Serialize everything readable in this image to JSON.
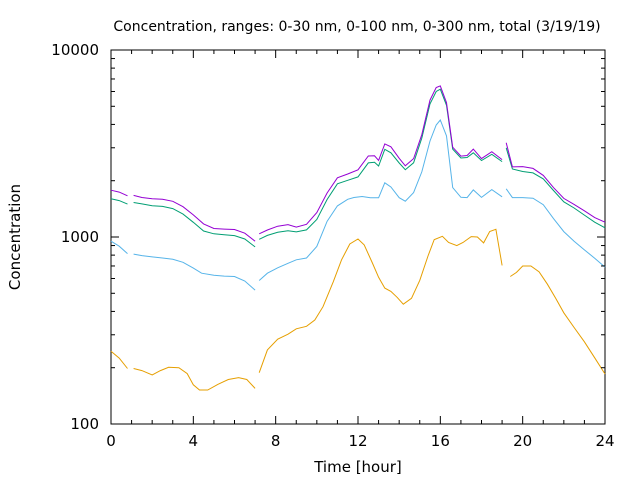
{
  "chart_data": {
    "type": "line",
    "title": "Concentration, ranges: 0-30 nm, 0-100 nm, 0-300 nm, total (3/19/19)",
    "xlabel": "Time [hour]",
    "ylabel": "Concentration",
    "xlim": [
      0,
      24
    ],
    "ylim": [
      100,
      10000
    ],
    "yscale": "log",
    "grid": false,
    "x_ticks": [
      "0",
      "4",
      "8",
      "12",
      "16",
      "20",
      "24"
    ],
    "y_ticks": [
      "100",
      "1000",
      "10000"
    ],
    "series": [
      {
        "color": "#e69f00",
        "segments": [
          [
            [
              0,
              245
            ],
            [
              0.4,
              225
            ],
            [
              0.8,
              198
            ]
          ],
          [
            [
              1.1,
              198
            ],
            [
              1.5,
              193
            ],
            [
              2.0,
              183
            ],
            [
              2.4,
              193
            ],
            [
              2.8,
              201
            ],
            [
              3.3,
              200
            ],
            [
              3.7,
              186
            ],
            [
              4.0,
              162
            ],
            [
              4.3,
              152
            ],
            [
              4.7,
              152
            ],
            [
              5.2,
              163
            ],
            [
              5.7,
              173
            ],
            [
              6.2,
              177
            ],
            [
              6.6,
              173
            ],
            [
              7.0,
              155
            ]
          ],
          [
            [
              7.2,
              188
            ],
            [
              7.6,
              249
            ],
            [
              8.1,
              284
            ],
            [
              8.6,
              302
            ],
            [
              9.0,
              323
            ],
            [
              9.5,
              333
            ],
            [
              9.9,
              360
            ],
            [
              10.3,
              424
            ],
            [
              10.8,
              577
            ],
            [
              11.2,
              754
            ],
            [
              11.6,
              917
            ],
            [
              12.0,
              976
            ],
            [
              12.3,
              907
            ],
            [
              12.7,
              726
            ],
            [
              13.0,
              609
            ],
            [
              13.3,
              533
            ],
            [
              13.6,
              512
            ],
            [
              13.9,
              476
            ],
            [
              14.2,
              437
            ],
            [
              14.6,
              470
            ],
            [
              15.0,
              587
            ],
            [
              15.4,
              791
            ],
            [
              15.7,
              968
            ],
            [
              16.1,
              1009
            ],
            [
              16.4,
              935
            ],
            [
              16.8,
              900
            ],
            [
              17.1,
              935
            ],
            [
              17.5,
              1005
            ],
            [
              17.8,
              1000
            ],
            [
              18.1,
              930
            ],
            [
              18.4,
              1070
            ],
            [
              18.7,
              1100
            ],
            [
              19.0,
              705
            ]
          ],
          [
            [
              19.4,
              615
            ],
            [
              19.7,
              647
            ],
            [
              20.0,
              700
            ],
            [
              20.4,
              700
            ],
            [
              20.8,
              651
            ],
            [
              21.2,
              559
            ],
            [
              21.6,
              471
            ],
            [
              22.0,
              393
            ],
            [
              22.5,
              328
            ],
            [
              23.0,
              275
            ],
            [
              23.5,
              226
            ],
            [
              24.0,
              185
            ]
          ]
        ]
      },
      {
        "color": "#56b4e9",
        "segments": [
          [
            [
              0,
              950
            ],
            [
              0.4,
              893
            ],
            [
              0.8,
              815
            ]
          ],
          [
            [
              1.1,
              810
            ],
            [
              1.5,
              795
            ],
            [
              2.0,
              783
            ],
            [
              2.5,
              772
            ],
            [
              3.0,
              760
            ],
            [
              3.5,
              732
            ],
            [
              4.0,
              682
            ],
            [
              4.4,
              640
            ],
            [
              5.0,
              625
            ],
            [
              5.5,
              618
            ],
            [
              6.0,
              615
            ],
            [
              6.5,
              582
            ],
            [
              7.0,
              520
            ]
          ],
          [
            [
              7.2,
              585
            ],
            [
              7.6,
              640
            ],
            [
              8.1,
              684
            ],
            [
              8.6,
              723
            ],
            [
              9.0,
              755
            ],
            [
              9.5,
              772
            ],
            [
              10.0,
              890
            ],
            [
              10.5,
              1214
            ],
            [
              11.0,
              1466
            ],
            [
              11.5,
              1591
            ],
            [
              11.8,
              1626
            ],
            [
              12.2,
              1646
            ],
            [
              12.6,
              1622
            ],
            [
              13.0,
              1621
            ],
            [
              13.3,
              1950
            ],
            [
              13.6,
              1850
            ],
            [
              14.0,
              1622
            ],
            [
              14.3,
              1554
            ],
            [
              14.7,
              1727
            ],
            [
              15.1,
              2230
            ],
            [
              15.5,
              3263
            ],
            [
              15.8,
              3971
            ],
            [
              16.0,
              4223
            ],
            [
              16.3,
              3472
            ],
            [
              16.6,
              1837
            ],
            [
              17.0,
              1630
            ],
            [
              17.3,
              1624
            ],
            [
              17.6,
              1786
            ],
            [
              18.0,
              1628
            ],
            [
              18.5,
              1792
            ],
            [
              19.0,
              1640
            ]
          ],
          [
            [
              19.2,
              1810
            ],
            [
              19.5,
              1624
            ],
            [
              20.0,
              1625
            ],
            [
              20.5,
              1612
            ],
            [
              21.0,
              1489
            ],
            [
              21.5,
              1255
            ],
            [
              22.0,
              1069
            ],
            [
              22.5,
              949
            ],
            [
              23.0,
              853
            ],
            [
              23.5,
              770
            ],
            [
              24.0,
              690
            ]
          ]
        ]
      },
      {
        "color": "#009e73",
        "segments": [
          [
            [
              0,
              1600
            ],
            [
              0.4,
              1565
            ],
            [
              0.8,
              1500
            ]
          ],
          [
            [
              1.1,
              1530
            ],
            [
              1.5,
              1504
            ],
            [
              2.0,
              1470
            ],
            [
              2.5,
              1457
            ],
            [
              3.0,
              1419
            ],
            [
              3.5,
              1326
            ],
            [
              4.0,
              1199
            ],
            [
              4.5,
              1077
            ],
            [
              5.0,
              1040
            ],
            [
              5.5,
              1028
            ],
            [
              6.0,
              1018
            ],
            [
              6.5,
              976
            ],
            [
              7.0,
              885
            ]
          ],
          [
            [
              7.2,
              972
            ],
            [
              7.6,
              1020
            ],
            [
              8.1,
              1059
            ],
            [
              8.6,
              1081
            ],
            [
              9.0,
              1065
            ],
            [
              9.5,
              1091
            ],
            [
              10.0,
              1240
            ],
            [
              10.5,
              1586
            ],
            [
              11.0,
              1925
            ],
            [
              11.5,
              2010
            ],
            [
              12.0,
              2096
            ],
            [
              12.5,
              2491
            ],
            [
              12.8,
              2509
            ],
            [
              13.0,
              2396
            ],
            [
              13.3,
              2946
            ],
            [
              13.6,
              2821
            ],
            [
              14.0,
              2488
            ],
            [
              14.3,
              2290
            ],
            [
              14.7,
              2493
            ],
            [
              15.1,
              3381
            ],
            [
              15.5,
              5152
            ],
            [
              15.8,
              6001
            ],
            [
              16.0,
              6170
            ],
            [
              16.3,
              5063
            ],
            [
              16.6,
              2950
            ],
            [
              17.0,
              2644
            ],
            [
              17.3,
              2662
            ],
            [
              17.6,
              2821
            ],
            [
              18.0,
              2566
            ],
            [
              18.5,
              2767
            ],
            [
              19.0,
              2530
            ]
          ],
          [
            [
              19.2,
              3000
            ],
            [
              19.5,
              2311
            ],
            [
              20.0,
              2239
            ],
            [
              20.5,
              2201
            ],
            [
              21.0,
              2044
            ],
            [
              21.5,
              1772
            ],
            [
              22.0,
              1542
            ],
            [
              22.5,
              1430
            ],
            [
              23.0,
              1310
            ],
            [
              23.5,
              1200
            ],
            [
              24.0,
              1120
            ]
          ]
        ]
      },
      {
        "color": "#9400d3",
        "segments": [
          [
            [
              0,
              1780
            ],
            [
              0.4,
              1739
            ],
            [
              0.8,
              1660
            ]
          ],
          [
            [
              1.1,
              1670
            ],
            [
              1.5,
              1627
            ],
            [
              2.0,
              1601
            ],
            [
              2.5,
              1592
            ],
            [
              3.0,
              1553
            ],
            [
              3.5,
              1453
            ],
            [
              4.0,
              1313
            ],
            [
              4.5,
              1175
            ],
            [
              5.0,
              1110
            ],
            [
              5.5,
              1102
            ],
            [
              6.0,
              1097
            ],
            [
              6.5,
              1048
            ],
            [
              7.0,
              950
            ]
          ],
          [
            [
              7.2,
              1040
            ],
            [
              7.6,
              1090
            ],
            [
              8.1,
              1142
            ],
            [
              8.6,
              1165
            ],
            [
              9.0,
              1129
            ],
            [
              9.5,
              1169
            ],
            [
              10.0,
              1350
            ],
            [
              10.5,
              1720
            ],
            [
              11.0,
              2072
            ],
            [
              11.5,
              2172
            ],
            [
              12.0,
              2287
            ],
            [
              12.5,
              2712
            ],
            [
              12.8,
              2719
            ],
            [
              13.0,
              2567
            ],
            [
              13.3,
              3148
            ],
            [
              13.6,
              3035
            ],
            [
              14.0,
              2636
            ],
            [
              14.3,
              2403
            ],
            [
              14.7,
              2627
            ],
            [
              15.1,
              3527
            ],
            [
              15.5,
              5393
            ],
            [
              15.8,
              6300
            ],
            [
              16.0,
              6426
            ],
            [
              16.3,
              5232
            ],
            [
              16.6,
              3023
            ],
            [
              17.0,
              2707
            ],
            [
              17.3,
              2728
            ],
            [
              17.6,
              2950
            ],
            [
              18.0,
              2625
            ],
            [
              18.5,
              2858
            ],
            [
              19.0,
              2594
            ]
          ],
          [
            [
              19.2,
              3190
            ],
            [
              19.5,
              2371
            ],
            [
              20.0,
              2379
            ],
            [
              20.5,
              2327
            ],
            [
              21.0,
              2136
            ],
            [
              21.5,
              1838
            ],
            [
              22.0,
              1609
            ],
            [
              22.5,
              1494
            ],
            [
              23.0,
              1380
            ],
            [
              23.5,
              1270
            ],
            [
              24.0,
              1200
            ]
          ]
        ]
      }
    ]
  }
}
